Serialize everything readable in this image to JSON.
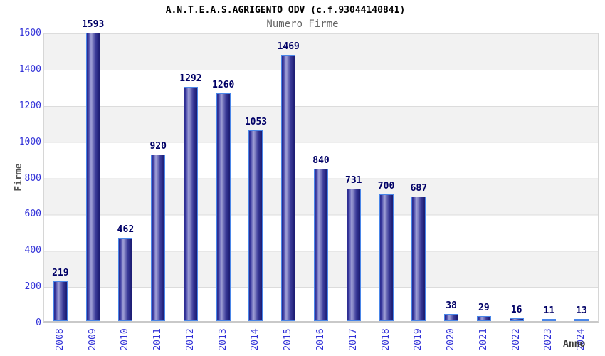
{
  "header": {
    "title": "A.N.T.E.A.S.AGRIGENTO ODV (c.f.93044140841)",
    "subtitle": "Numero Firme"
  },
  "chart_data": {
    "type": "bar",
    "title": "A.N.T.E.A.S.AGRIGENTO ODV (c.f.93044140841)",
    "subtitle": "Numero Firme",
    "xlabel": "Anno",
    "ylabel": "Firme",
    "categories": [
      "2008",
      "2009",
      "2010",
      "2011",
      "2012",
      "2013",
      "2014",
      "2015",
      "2016",
      "2017",
      "2018",
      "2019",
      "2020",
      "2021",
      "2022",
      "2023",
      "2024"
    ],
    "values": [
      219,
      1593,
      462,
      920,
      1292,
      1260,
      1053,
      1469,
      840,
      731,
      700,
      687,
      38,
      29,
      16,
      11,
      13
    ],
    "ylim": [
      0,
      1600
    ],
    "yticks": [
      0,
      200,
      400,
      600,
      800,
      1000,
      1200,
      1400,
      1600
    ],
    "grid": "horizontal-bands",
    "legend": "none",
    "colors": {
      "bar_fill": "#2a2a8e",
      "bar_highlight": "#a2a2d8",
      "bar_outline": "#4a86e8",
      "tick_label": "#3232d8",
      "value_label": "#000066",
      "axis_title": "#555555",
      "subtitle": "#666666",
      "title": "#000000",
      "band_gray": "#f2f2f2",
      "band_white": "#ffffff"
    }
  }
}
